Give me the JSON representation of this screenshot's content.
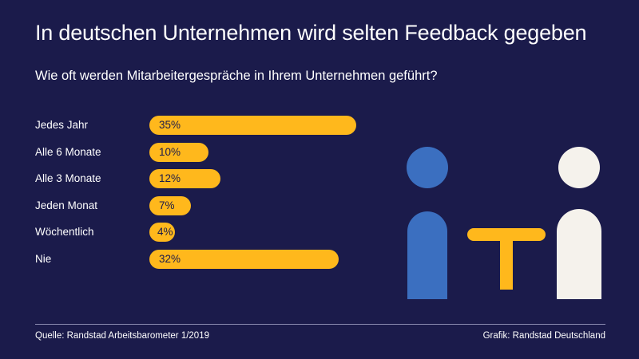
{
  "title": "In deutschen Unternehmen wird selten Feedback gegeben",
  "subtitle": "Wie oft werden Mitarbeitergespräche in Ihrem Unternehmen geführt?",
  "colors": {
    "background": "#1b1b4b",
    "bar": "#ffb81c",
    "bar_text": "#1b1b4b",
    "person_left": "#3b6fc0",
    "person_right": "#f5f2ec",
    "table": "#ffb81c"
  },
  "chart_data": {
    "type": "bar",
    "orientation": "horizontal",
    "title": "In deutschen Unternehmen wird selten Feedback gegeben",
    "subtitle": "Wie oft werden Mitarbeitergespräche in Ihrem Unternehmen geführt?",
    "categories": [
      "Jedes Jahr",
      "Alle 6 Monate",
      "Alle 3 Monate",
      "Jeden Monat",
      "Wöchentlich",
      "Nie"
    ],
    "values": [
      35,
      10,
      12,
      7,
      4,
      32
    ],
    "labels": [
      "35%",
      "10%",
      "12%",
      "7%",
      "4%",
      "32%"
    ],
    "unit": "%",
    "xlabel": "",
    "ylabel": "",
    "grid": false
  },
  "footer": {
    "source": "Quelle: Randstad Arbeitsbarometer 1/2019",
    "credit": "Grafik: Randstad Deutschland"
  },
  "illustration": {
    "icons": [
      "person-icon",
      "table-icon",
      "person-icon"
    ]
  }
}
